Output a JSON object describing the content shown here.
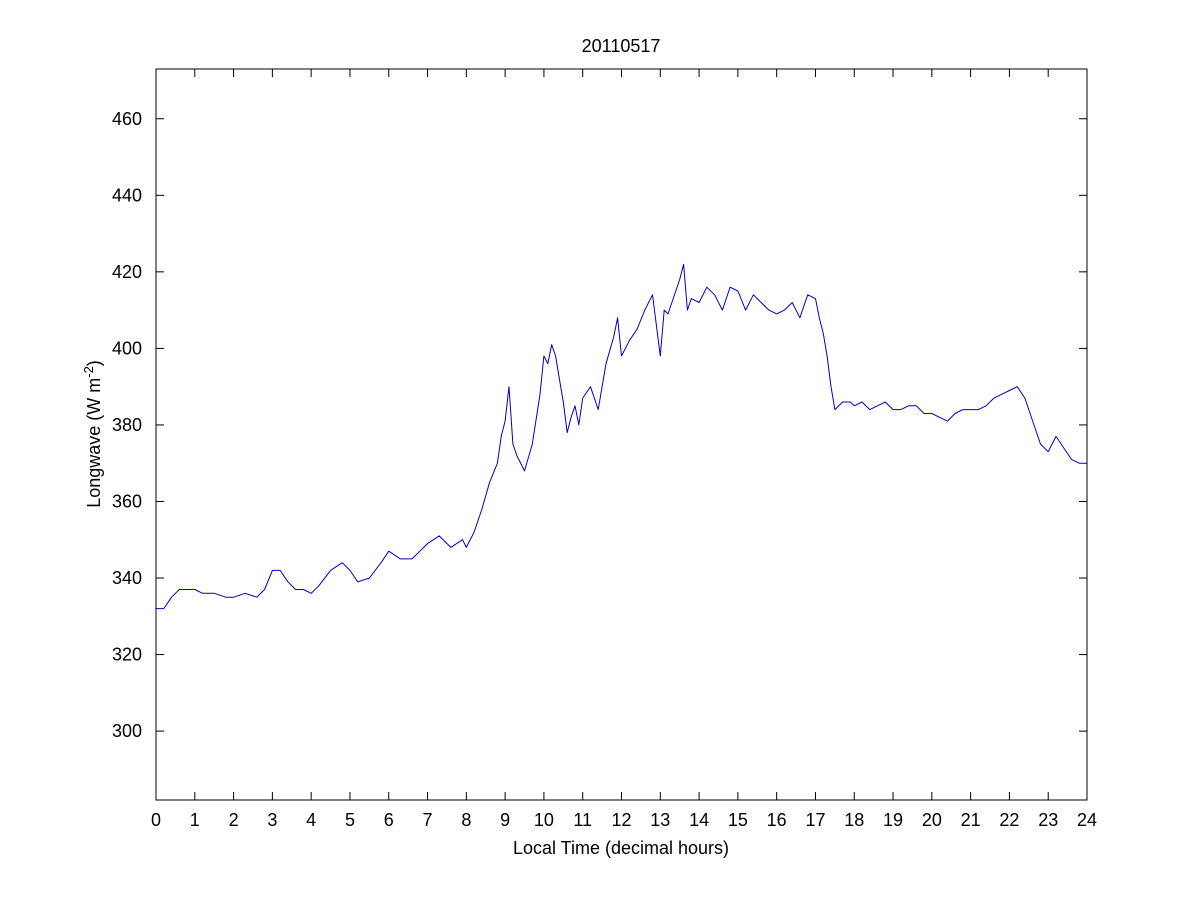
{
  "chart_data": {
    "type": "line",
    "title": "20110517",
    "xlabel": "Local Time (decimal hours)",
    "ylabel_main": "Longwave (W m",
    "ylabel_sup": "-2",
    "ylabel_close": ")",
    "xlim": [
      0,
      24
    ],
    "ylim": [
      282,
      473
    ],
    "xticks": [
      0,
      1,
      2,
      3,
      4,
      5,
      6,
      7,
      8,
      9,
      10,
      11,
      12,
      13,
      14,
      15,
      16,
      17,
      18,
      19,
      20,
      21,
      22,
      23,
      24
    ],
    "yticks": [
      300,
      320,
      340,
      360,
      380,
      400,
      420,
      440,
      460
    ],
    "grid": false,
    "line_color": "#0000cc",
    "series": [
      {
        "x": [
          0,
          0.2,
          0.4,
          0.6,
          0.8,
          1.0,
          1.2,
          1.5,
          1.8,
          2.0,
          2.3,
          2.6,
          2.8,
          3.0,
          3.2,
          3.4,
          3.6,
          3.8,
          4.0,
          4.2,
          4.5,
          4.8,
          5.0,
          5.2,
          5.5,
          5.8,
          6.0,
          6.3,
          6.6,
          6.8,
          7.0,
          7.3,
          7.6,
          7.9,
          8.0,
          8.2,
          8.4,
          8.6,
          8.8,
          8.9,
          9.0,
          9.1,
          9.2,
          9.3,
          9.5,
          9.7,
          9.9,
          10.0,
          10.1,
          10.2,
          10.3,
          10.4,
          10.5,
          10.6,
          10.7,
          10.8,
          10.9,
          11.0,
          11.2,
          11.4,
          11.6,
          11.8,
          11.9,
          12.0,
          12.2,
          12.4,
          12.6,
          12.8,
          13.0,
          13.1,
          13.2,
          13.4,
          13.5,
          13.6,
          13.7,
          13.8,
          14.0,
          14.2,
          14.4,
          14.6,
          14.8,
          15.0,
          15.2,
          15.4,
          15.6,
          15.8,
          16.0,
          16.2,
          16.4,
          16.6,
          16.8,
          17.0,
          17.1,
          17.2,
          17.3,
          17.4,
          17.5,
          17.7,
          17.9,
          18.0,
          18.2,
          18.4,
          18.6,
          18.8,
          19.0,
          19.2,
          19.4,
          19.6,
          19.8,
          20.0,
          20.2,
          20.4,
          20.6,
          20.8,
          21.0,
          21.2,
          21.4,
          21.6,
          21.8,
          22.0,
          22.2,
          22.4,
          22.6,
          22.8,
          23.0,
          23.2,
          23.4,
          23.6,
          23.8,
          24.0
        ],
        "y": [
          332,
          332,
          335,
          337,
          337,
          337,
          336,
          336,
          335,
          335,
          336,
          335,
          337,
          342,
          342,
          339,
          337,
          337,
          336,
          338,
          342,
          344,
          342,
          339,
          340,
          344,
          347,
          345,
          345,
          347,
          349,
          351,
          348,
          350,
          348,
          352,
          358,
          365,
          370,
          377,
          381,
          390,
          375,
          372,
          368,
          375,
          388,
          398,
          396,
          401,
          398,
          392,
          386,
          378,
          382,
          385,
          380,
          387,
          390,
          384,
          396,
          403,
          408,
          398,
          402,
          405,
          410,
          414,
          398,
          410,
          409,
          415,
          418,
          422,
          410,
          413,
          412,
          416,
          414,
          410,
          416,
          415,
          410,
          414,
          412,
          410,
          409,
          410,
          412,
          408,
          414,
          413,
          408,
          404,
          398,
          390,
          384,
          386,
          386,
          385,
          386,
          384,
          385,
          386,
          384,
          384,
          385,
          385,
          383,
          383,
          382,
          381,
          383,
          384,
          384,
          384,
          385,
          387,
          388,
          389,
          390,
          387,
          381,
          375,
          373,
          377,
          374,
          371,
          370,
          370
        ]
      }
    ]
  }
}
